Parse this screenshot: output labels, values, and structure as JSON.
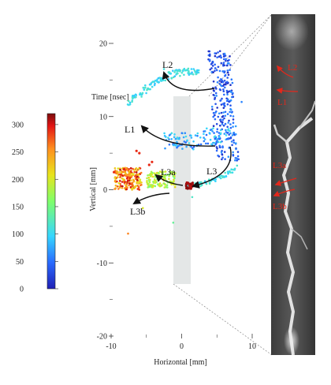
{
  "chart_data": {
    "type": "scatter",
    "xlabel": "Horizontal [mm]",
    "ylabel": "Vertical [mm]",
    "xlim": [
      -10,
      10
    ],
    "ylim": [
      -20,
      20
    ],
    "x_ticks": [
      "-10",
      "0",
      "10"
    ],
    "y_ticks": [
      "20",
      "10",
      "0",
      "-10",
      "-20"
    ],
    "colorbar": {
      "title": "Time [nsec]",
      "range": [
        0,
        320
      ],
      "ticks": [
        "300",
        "250",
        "200",
        "150",
        "100",
        "50",
        "0"
      ],
      "colors": [
        "#1f1fb4",
        "#2a6bff",
        "#35d6ff",
        "#7fff6a",
        "#e8e41c",
        "#ff8f1e",
        "#e31414",
        "#7a0c0c"
      ]
    },
    "clusters": [
      {
        "region": "upper-right vertical channel",
        "t": [
          0,
          80
        ],
        "x": [
          3.5,
          8.5
        ],
        "y": [
          4,
          19
        ]
      },
      {
        "region": "upper-left arc",
        "t": [
          80,
          130
        ],
        "x": [
          -8,
          3
        ],
        "y": [
          6,
          19
        ]
      },
      {
        "region": "middle band",
        "t": [
          40,
          110
        ],
        "x": [
          -3,
          7
        ],
        "y": [
          5,
          8
        ]
      },
      {
        "region": "right lower arc",
        "t": [
          80,
          130
        ],
        "x": [
          0,
          8
        ],
        "y": [
          0,
          3
        ]
      },
      {
        "region": "left cluster",
        "t": [
          200,
          310
        ],
        "x": [
          -10,
          -6
        ],
        "y": [
          0,
          3
        ]
      },
      {
        "region": "left-center cluster",
        "t": [
          150,
          230
        ],
        "x": [
          -5,
          -1
        ],
        "y": [
          0,
          3
        ]
      },
      {
        "region": "center dense spot",
        "t": [
          300,
          320
        ],
        "x": [
          0.5,
          1.5
        ],
        "y": [
          0,
          1
        ]
      }
    ],
    "path_labels": [
      "L1",
      "L2",
      "L3",
      "L3a",
      "L3b"
    ],
    "photo_labels": [
      "L2",
      "L1",
      "L3a",
      "L3b"
    ]
  }
}
